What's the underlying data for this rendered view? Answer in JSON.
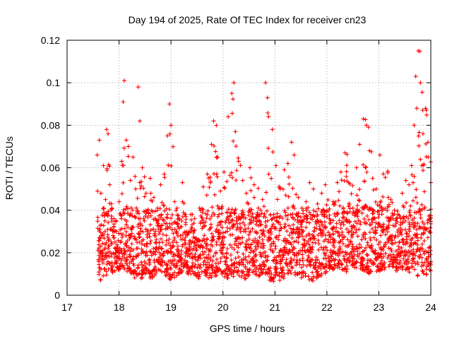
{
  "chart_data": {
    "type": "scatter",
    "title": "Day 194 of 2025, Rate Of TEC Index for receiver cn23",
    "xlabel": "GPS time / hours",
    "ylabel": "ROTI / TECUs",
    "xlim": [
      17,
      24
    ],
    "ylim": [
      0,
      0.12
    ],
    "x_ticks": [
      "17",
      "18",
      "19",
      "20",
      "21",
      "22",
      "23",
      "24"
    ],
    "y_ticks": [
      "0",
      "0.02",
      "0.04",
      "0.06",
      "0.08",
      "0.1",
      "0.12"
    ],
    "grid": true,
    "marker": "+",
    "colors": {
      "points": "#ff0000",
      "grid": "#a0a0a0",
      "axes": "#000000"
    },
    "series": [
      {
        "x": [
          17.58,
          17.62,
          17.65,
          17.7,
          17.74,
          17.76,
          17.79,
          17.82,
          17.86,
          17.9,
          17.95,
          18.0,
          18.05,
          18.08,
          18.1,
          18.14,
          18.18,
          18.22,
          18.27,
          18.32,
          18.37,
          18.4,
          18.45,
          18.52,
          18.6,
          18.67,
          18.74,
          18.8,
          18.87,
          18.93,
          18.97,
          19.0,
          19.07,
          19.15,
          19.22,
          19.3,
          19.38,
          19.46,
          19.55,
          19.62,
          19.7,
          19.78,
          19.82,
          19.88,
          19.95,
          20.02,
          20.1,
          20.17,
          20.21,
          20.24,
          20.3,
          20.38,
          20.45,
          20.52,
          20.6,
          20.68,
          20.76,
          20.82,
          20.88,
          20.95,
          21.02,
          21.1,
          21.18,
          21.25,
          21.32,
          21.37,
          21.45,
          21.52,
          21.6,
          21.67,
          21.74,
          21.82,
          21.9,
          21.97,
          22.05,
          22.12,
          22.2,
          22.27,
          22.35,
          22.42,
          22.5,
          22.57,
          22.63,
          22.7,
          22.76,
          22.82,
          22.88,
          22.95,
          23.02,
          23.18,
          23.23,
          23.3,
          23.37,
          23.45,
          23.52,
          23.58,
          23.63,
          23.68,
          23.71,
          23.73,
          23.76,
          23.8,
          23.85,
          23.9,
          23.95,
          24.0
        ],
        "y": [
          0.066,
          0.073,
          0.048,
          0.061,
          0.045,
          0.078,
          0.076,
          0.052,
          0.041,
          0.036,
          0.03,
          0.044,
          0.063,
          0.091,
          0.101,
          0.073,
          0.07,
          0.054,
          0.065,
          0.05,
          0.098,
          0.082,
          0.06,
          0.048,
          0.055,
          0.046,
          0.041,
          0.052,
          0.057,
          0.075,
          0.09,
          0.08,
          0.044,
          0.036,
          0.053,
          0.03,
          0.038,
          0.027,
          0.041,
          0.051,
          0.057,
          0.071,
          0.082,
          0.065,
          0.049,
          0.058,
          0.084,
          0.095,
          0.1,
          0.077,
          0.063,
          0.054,
          0.048,
          0.06,
          0.052,
          0.041,
          0.045,
          0.1,
          0.057,
          0.078,
          0.061,
          0.05,
          0.059,
          0.062,
          0.072,
          0.066,
          0.046,
          0.041,
          0.044,
          0.053,
          0.05,
          0.043,
          0.048,
          0.052,
          0.036,
          0.044,
          0.053,
          0.058,
          0.067,
          0.053,
          0.041,
          0.06,
          0.071,
          0.083,
          0.08,
          0.068,
          0.055,
          0.05,
          0.066,
          0.046,
          0.045,
          0.04,
          0.038,
          0.048,
          0.054,
          0.052,
          0.061,
          0.08,
          0.103,
          0.088,
          0.115,
          0.1,
          0.076,
          0.088,
          0.065,
          0.053
        ],
        "baseline_min": [
          0.008,
          0.007,
          0.009,
          0.01,
          0.009,
          0.01,
          0.011,
          0.012,
          0.01,
          0.011,
          0.012,
          0.01,
          0.008,
          0.009,
          0.01,
          0.011,
          0.012,
          0.01,
          0.008,
          0.009,
          0.01,
          0.008,
          0.009,
          0.01,
          0.008,
          0.009,
          0.01,
          0.011,
          0.009,
          0.008,
          0.007,
          0.008,
          0.009,
          0.01,
          0.012,
          0.01,
          0.009,
          0.008,
          0.01,
          0.009,
          0.008,
          0.007,
          0.009,
          0.011,
          0.01,
          0.008,
          0.009,
          0.008,
          0.009,
          0.01,
          0.008,
          0.007,
          0.009,
          0.01,
          0.008,
          0.009,
          0.01,
          0.008,
          0.007,
          0.006,
          0.007,
          0.008,
          0.009,
          0.01,
          0.011,
          0.009,
          0.008,
          0.009,
          0.007,
          0.006,
          0.008,
          0.009,
          0.01,
          0.011,
          0.012,
          0.012,
          0.013,
          0.012,
          0.011,
          0.012,
          0.013,
          0.014,
          0.012,
          0.011,
          0.01,
          0.011,
          0.012,
          0.011,
          0.012,
          0.013,
          0.012,
          0.011,
          0.01,
          0.011,
          0.012,
          0.01,
          0.009,
          0.01,
          0.011,
          0.009,
          0.01,
          0.011,
          0.01,
          0.009,
          0.011,
          0.012
        ]
      }
    ]
  }
}
